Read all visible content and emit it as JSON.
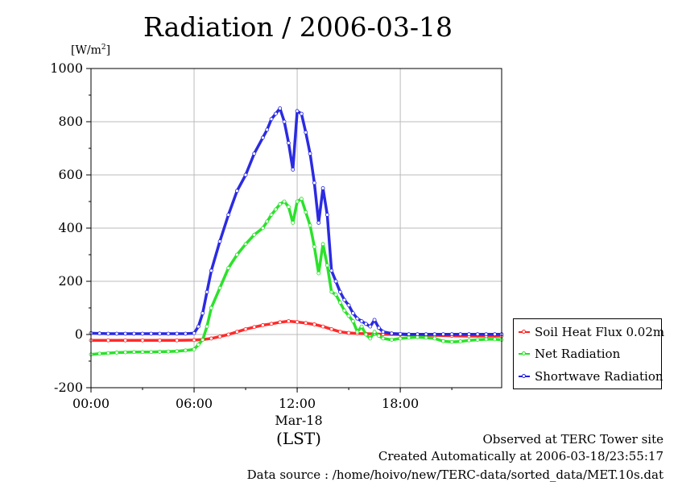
{
  "chart_data": {
    "type": "line",
    "title": "Radiation / 2006-03-18",
    "ylabel": "[W/m²]",
    "unit_base": "[W/m",
    "unit_exp": "2",
    "unit_close": "]",
    "ylim": [
      -200,
      1000
    ],
    "yticks": [
      -200,
      0,
      200,
      400,
      600,
      800,
      1000
    ],
    "ytick_labels": [
      "-200",
      "0",
      "200",
      "400",
      "600",
      "800",
      "1000"
    ],
    "xlim": [
      0,
      23.9
    ],
    "xticks": [
      0,
      6,
      12,
      18
    ],
    "xtick_labels": [
      "00:00",
      "06:00",
      "12:00",
      "18:00"
    ],
    "xsublabel": "Mar-18",
    "xunit": "(LST)",
    "grid": true,
    "legend_position": "right-bottom, outside plot",
    "series": [
      {
        "name": "Soil Heat Flux 0.02m",
        "color": "#ff2020",
        "x": [
          0,
          1,
          2,
          3,
          4,
          5,
          6,
          6.5,
          7,
          7.5,
          8,
          8.5,
          9,
          9.5,
          10,
          10.5,
          11,
          11.5,
          12,
          12.5,
          13,
          13.5,
          14,
          14.5,
          15,
          15.5,
          16,
          16.5,
          17,
          18,
          19,
          20,
          21,
          22,
          23,
          23.9
        ],
        "values": [
          -22,
          -22,
          -22,
          -22,
          -22,
          -22,
          -21,
          -19,
          -15,
          -8,
          0,
          10,
          20,
          28,
          35,
          40,
          46,
          50,
          47,
          43,
          38,
          30,
          20,
          10,
          6,
          4,
          3,
          2,
          1,
          0,
          -2,
          -3,
          -5,
          -6,
          -6,
          -6
        ]
      },
      {
        "name": "Net Radiation",
        "color": "#20e020",
        "x": [
          0,
          0.5,
          1,
          1.5,
          2,
          2.5,
          3,
          3.5,
          4,
          4.5,
          5,
          5.5,
          6,
          6.25,
          6.5,
          6.75,
          7,
          7.5,
          8,
          8.5,
          9,
          9.5,
          10,
          10.25,
          10.5,
          10.75,
          11,
          11.25,
          11.5,
          11.75,
          12,
          12.25,
          12.5,
          12.75,
          13,
          13.25,
          13.5,
          13.75,
          14,
          14.25,
          14.5,
          14.75,
          15,
          15.25,
          15.5,
          15.75,
          16,
          16.25,
          16.5,
          16.75,
          17,
          17.5,
          18,
          18.5,
          19,
          19.5,
          20,
          20.5,
          21,
          21.5,
          22,
          22.5,
          23,
          23.5,
          23.9
        ],
        "values": [
          -75,
          -72,
          -70,
          -68,
          -67,
          -66,
          -66,
          -66,
          -65,
          -64,
          -63,
          -60,
          -56,
          -38,
          -20,
          30,
          100,
          175,
          250,
          300,
          340,
          375,
          400,
          425,
          450,
          470,
          490,
          500,
          480,
          420,
          500,
          510,
          460,
          410,
          330,
          230,
          340,
          260,
          160,
          150,
          120,
          90,
          70,
          50,
          10,
          30,
          0,
          -15,
          10,
          -5,
          -15,
          -20,
          -15,
          -12,
          -10,
          -12,
          -15,
          -25,
          -28,
          -26,
          -22,
          -20,
          -18,
          -18,
          -20
        ]
      },
      {
        "name": "Shortwave Radiation",
        "color": "#2020e0",
        "x": [
          0,
          0.5,
          1,
          1.5,
          2,
          2.5,
          3,
          3.5,
          4,
          4.5,
          5,
          5.5,
          6,
          6.25,
          6.5,
          6.75,
          7,
          7.5,
          8,
          8.5,
          9,
          9.5,
          10,
          10.25,
          10.5,
          10.75,
          11,
          11.25,
          11.5,
          11.75,
          12,
          12.25,
          12.5,
          12.75,
          13,
          13.25,
          13.5,
          13.75,
          14,
          14.25,
          14.5,
          14.75,
          15,
          15.25,
          15.5,
          15.75,
          16,
          16.25,
          16.5,
          16.75,
          17,
          17.5,
          18,
          18.5,
          19,
          19.5,
          20,
          20.5,
          21,
          21.5,
          22,
          22.5,
          23,
          23.5,
          23.9
        ],
        "values": [
          5,
          4,
          3,
          3,
          3,
          3,
          3,
          3,
          3,
          3,
          3,
          3,
          5,
          30,
          80,
          160,
          240,
          350,
          450,
          540,
          600,
          680,
          740,
          770,
          810,
          830,
          850,
          800,
          720,
          620,
          840,
          830,
          760,
          680,
          570,
          420,
          550,
          450,
          240,
          200,
          160,
          130,
          110,
          80,
          60,
          50,
          40,
          30,
          55,
          25,
          10,
          4,
          2,
          1,
          1,
          1,
          1,
          1,
          1,
          1,
          1,
          1,
          1,
          1,
          1
        ]
      }
    ]
  },
  "footer": {
    "line1": "Observed at TERC Tower site",
    "line2": "Created Automatically at 2006-03-18/23:55:17",
    "line3": "Data source : /home/hoivo/new/TERC-data/sorted_data/MET.10s.dat"
  }
}
